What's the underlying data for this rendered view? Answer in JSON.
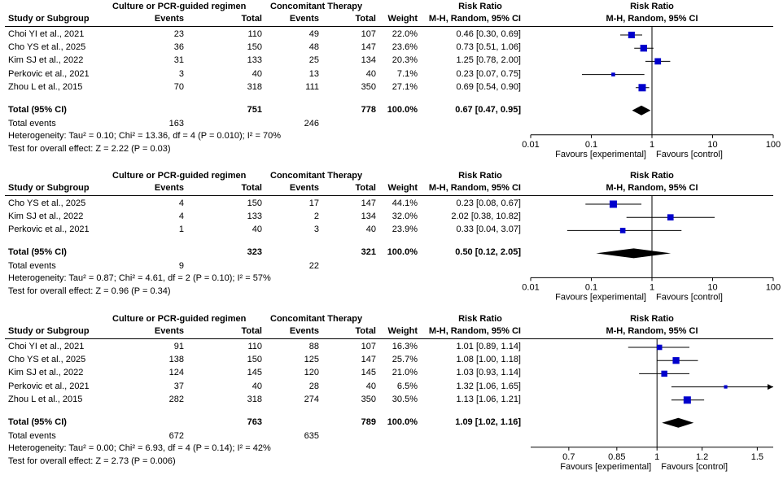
{
  "colors": {
    "marker": "#0000cc",
    "diamond": "#000000",
    "line": "#000000"
  },
  "panels": [
    {
      "header": {
        "exp_group": "Culture or PCR-guided regimen",
        "ctrl_group": "Concomitant Therapy",
        "rr_col": "Risk Ratio",
        "plot_col": "Risk Ratio",
        "study": "Study or Subgroup",
        "exp_events": "Events",
        "exp_total": "Total",
        "ctrl_events": "Events",
        "ctrl_total": "Total",
        "weight": "Weight",
        "method": "M-H, Random, 95% CI",
        "plot_method": "M-H, Random, 95% CI"
      },
      "studies": [
        {
          "name": "Choi YI et al., 2021",
          "ee": "23",
          "et": "110",
          "ce": "49",
          "ct": "107",
          "w": "22.0%",
          "ci": "0.46 [0.30, 0.69]"
        },
        {
          "name": "Cho YS et al., 2025",
          "ee": "36",
          "et": "150",
          "ce": "48",
          "ct": "147",
          "w": "23.6%",
          "ci": "0.73 [0.51, 1.06]"
        },
        {
          "name": "Kim SJ et al., 2022",
          "ee": "31",
          "et": "133",
          "ce": "25",
          "ct": "134",
          "w": "20.3%",
          "ci": "1.25 [0.78, 2.00]"
        },
        {
          "name": "Perkovic et al., 2021",
          "ee": "3",
          "et": "40",
          "ce": "13",
          "ct": "40",
          "w": "7.1%",
          "ci": "0.23 [0.07, 0.75]"
        },
        {
          "name": "Zhou L et al., 2015",
          "ee": "70",
          "et": "318",
          "ce": "111",
          "ct": "350",
          "w": "27.1%",
          "ci": "0.69 [0.54, 0.90]"
        }
      ],
      "total": {
        "label": "Total (95% CI)",
        "et": "751",
        "ct": "778",
        "w": "100.0%",
        "ci": "0.67 [0.47, 0.95]"
      },
      "events": {
        "label": "Total events",
        "ee": "163",
        "ce": "246"
      },
      "heterogeneity": "Heterogeneity: Tau² = 0.10; Chi² = 13.36, df = 4 (P = 0.010); I² = 70%",
      "overall": "Test for overall effect: Z = 2.22 (P = 0.03)",
      "favours_left": "Favours [experimental]",
      "favours_right": "Favours [control]"
    },
    {
      "header": {
        "exp_group": "Culture or PCR-guided regimen",
        "ctrl_group": "Concomitant Therapy",
        "rr_col": "Risk Ratio",
        "plot_col": "Risk Ratio",
        "study": "Study or Subgroup",
        "exp_events": "Events",
        "exp_total": "Total",
        "ctrl_events": "Events",
        "ctrl_total": "Total",
        "weight": "Weight",
        "method": "M-H, Random, 95% CI",
        "plot_method": "M-H, Random, 95% CI"
      },
      "studies": [
        {
          "name": "Cho YS et al., 2025",
          "ee": "4",
          "et": "150",
          "ce": "17",
          "ct": "147",
          "w": "44.1%",
          "ci": "0.23 [0.08, 0.67]"
        },
        {
          "name": "Kim SJ et al., 2022",
          "ee": "4",
          "et": "133",
          "ce": "2",
          "ct": "134",
          "w": "32.0%",
          "ci": "2.02 [0.38, 10.82]"
        },
        {
          "name": "Perkovic et al., 2021",
          "ee": "1",
          "et": "40",
          "ce": "3",
          "ct": "40",
          "w": "23.9%",
          "ci": "0.33 [0.04, 3.07]"
        }
      ],
      "total": {
        "label": "Total (95% CI)",
        "et": "323",
        "ct": "321",
        "w": "100.0%",
        "ci": "0.50 [0.12, 2.05]"
      },
      "events": {
        "label": "Total events",
        "ee": "9",
        "ce": "22"
      },
      "heterogeneity": "Heterogeneity: Tau² = 0.87; Chi² = 4.61, df = 2 (P = 0.10); I² = 57%",
      "overall": "Test for overall effect: Z = 0.96 (P = 0.34)",
      "favours_left": "Favours [experimental]",
      "favours_right": "Favours [control]"
    },
    {
      "header": {
        "exp_group": "Culture or PCR-guided regimen",
        "ctrl_group": "Concomitant Therapy",
        "rr_col": "Risk Ratio",
        "plot_col": "Risk Ratio",
        "study": "Study or Subgroup",
        "exp_events": "Events",
        "exp_total": "Total",
        "ctrl_events": "Events",
        "ctrl_total": "Total",
        "weight": "Weight",
        "method": "M-H, Random, 95% CI",
        "plot_method": "M-H, Random, 95% CI"
      },
      "studies": [
        {
          "name": "Choi YI et al., 2021",
          "ee": "91",
          "et": "110",
          "ce": "88",
          "ct": "107",
          "w": "16.3%",
          "ci": "1.01 [0.89, 1.14]"
        },
        {
          "name": "Cho YS et al., 2025",
          "ee": "138",
          "et": "150",
          "ce": "125",
          "ct": "147",
          "w": "25.7%",
          "ci": "1.08 [1.00, 1.18]"
        },
        {
          "name": "Kim SJ et al., 2022",
          "ee": "124",
          "et": "145",
          "ce": "120",
          "ct": "145",
          "w": "21.0%",
          "ci": "1.03 [0.93, 1.14]"
        },
        {
          "name": "Perkovic et al., 2021",
          "ee": "37",
          "et": "40",
          "ce": "28",
          "ct": "40",
          "w": "6.5%",
          "ci": "1.32 [1.06, 1.65]"
        },
        {
          "name": "Zhou L et al., 2015",
          "ee": "282",
          "et": "318",
          "ce": "274",
          "ct": "350",
          "w": "30.5%",
          "ci": "1.13 [1.06, 1.21]"
        }
      ],
      "total": {
        "label": "Total (95% CI)",
        "et": "763",
        "ct": "789",
        "w": "100.0%",
        "ci": "1.09 [1.02, 1.16]"
      },
      "events": {
        "label": "Total events",
        "ee": "672",
        "ce": "635"
      },
      "heterogeneity": "Heterogeneity: Tau² = 0.00; Chi² = 6.93, df = 4 (P = 0.14); I² = 42%",
      "overall": "Test for overall effect: Z = 2.73 (P = 0.006)",
      "favours_left": "Favours [experimental]",
      "favours_right": "Favours [control]"
    }
  ],
  "chart_data": [
    {
      "type": "forest",
      "scale": "log",
      "xlim": [
        0.01,
        100
      ],
      "ticks": [
        0.01,
        0.1,
        1,
        10,
        100
      ],
      "tick_labels": [
        "0.01",
        "0.1",
        "1",
        "10",
        "100"
      ],
      "null_value": 1,
      "studies": [
        {
          "name": "Choi YI et al., 2021",
          "rr": 0.46,
          "lo": 0.3,
          "hi": 0.69,
          "weight": 22.0
        },
        {
          "name": "Cho YS et al., 2025",
          "rr": 0.73,
          "lo": 0.51,
          "hi": 1.06,
          "weight": 23.6
        },
        {
          "name": "Kim SJ et al., 2022",
          "rr": 1.25,
          "lo": 0.78,
          "hi": 2.0,
          "weight": 20.3
        },
        {
          "name": "Perkovic et al., 2021",
          "rr": 0.23,
          "lo": 0.07,
          "hi": 0.75,
          "weight": 7.1
        },
        {
          "name": "Zhou L et al., 2015",
          "rr": 0.69,
          "lo": 0.54,
          "hi": 0.9,
          "weight": 27.1
        }
      ],
      "total": {
        "rr": 0.67,
        "lo": 0.47,
        "hi": 0.95
      }
    },
    {
      "type": "forest",
      "scale": "log",
      "xlim": [
        0.01,
        100
      ],
      "ticks": [
        0.01,
        0.1,
        1,
        10,
        100
      ],
      "tick_labels": [
        "0.01",
        "0.1",
        "1",
        "10",
        "100"
      ],
      "null_value": 1,
      "studies": [
        {
          "name": "Cho YS et al., 2025",
          "rr": 0.23,
          "lo": 0.08,
          "hi": 0.67,
          "weight": 44.1
        },
        {
          "name": "Kim SJ et al., 2022",
          "rr": 2.02,
          "lo": 0.38,
          "hi": 10.82,
          "weight": 32.0
        },
        {
          "name": "Perkovic et al., 2021",
          "rr": 0.33,
          "lo": 0.04,
          "hi": 3.07,
          "weight": 23.9
        }
      ],
      "total": {
        "rr": 0.5,
        "lo": 0.12,
        "hi": 2.05
      }
    },
    {
      "type": "forest",
      "scale": "log",
      "xlim": [
        0.6,
        1.6
      ],
      "ticks": [
        0.7,
        0.85,
        1,
        1.2,
        1.5
      ],
      "tick_labels": [
        "0.7",
        "0.85",
        "1",
        "1.2",
        "1.5"
      ],
      "null_value": 1,
      "studies": [
        {
          "name": "Choi YI et al., 2021",
          "rr": 1.01,
          "lo": 0.89,
          "hi": 1.14,
          "weight": 16.3
        },
        {
          "name": "Cho YS et al., 2025",
          "rr": 1.08,
          "lo": 1.0,
          "hi": 1.18,
          "weight": 25.7
        },
        {
          "name": "Kim SJ et al., 2022",
          "rr": 1.03,
          "lo": 0.93,
          "hi": 1.14,
          "weight": 21.0
        },
        {
          "name": "Perkovic et al., 2021",
          "rr": 1.32,
          "lo": 1.06,
          "hi": 1.65,
          "weight": 6.5
        },
        {
          "name": "Zhou L et al., 2015",
          "rr": 1.13,
          "lo": 1.06,
          "hi": 1.21,
          "weight": 30.5
        }
      ],
      "total": {
        "rr": 1.09,
        "lo": 1.02,
        "hi": 1.16
      }
    }
  ]
}
